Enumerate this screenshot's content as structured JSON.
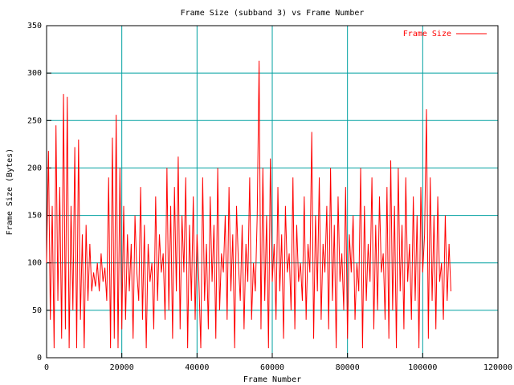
{
  "chart_data": {
    "type": "line",
    "title": "Frame Size (subband 3) vs Frame Number",
    "x_label": "Frame Number",
    "y_label": "Frame Size (Bytes)",
    "x": [
      0,
      500,
      1000,
      1500,
      2000,
      2500,
      3000,
      3500,
      4000,
      4500,
      5000,
      5500,
      6000,
      6500,
      7000,
      7500,
      8000,
      8500,
      9000,
      9500,
      10000,
      10500,
      11000,
      11500,
      12000,
      12500,
      13000,
      13500,
      14000,
      14500,
      15000,
      15500,
      16000,
      16500,
      17000,
      17500,
      18000,
      18500,
      19000,
      19500,
      20000,
      20500,
      21000,
      21500,
      22000,
      22500,
      23000,
      23500,
      24000,
      24500,
      25000,
      25500,
      26000,
      26500,
      27000,
      27500,
      28000,
      28500,
      29000,
      29500,
      30000,
      30500,
      31000,
      31500,
      32000,
      32500,
      33000,
      33500,
      34000,
      34500,
      35000,
      35500,
      36000,
      36500,
      37000,
      37500,
      38000,
      38500,
      39000,
      39500,
      40000,
      40500,
      41000,
      41500,
      42000,
      42500,
      43000,
      43500,
      44000,
      44500,
      45000,
      45500,
      46000,
      46500,
      47000,
      47500,
      48000,
      48500,
      49000,
      49500,
      50000,
      50500,
      51000,
      51500,
      52000,
      52500,
      53000,
      53500,
      54000,
      54500,
      55000,
      55500,
      56000,
      56500,
      57000,
      57500,
      58000,
      58500,
      59000,
      59500,
      60000,
      60500,
      61000,
      61500,
      62000,
      62500,
      63000,
      63500,
      64000,
      64500,
      65000,
      65500,
      66000,
      66500,
      67000,
      67500,
      68000,
      68500,
      69000,
      69500,
      70000,
      70500,
      71000,
      71500,
      72000,
      72500,
      73000,
      73500,
      74000,
      74500,
      75000,
      75500,
      76000,
      76500,
      77000,
      77500,
      78000,
      78500,
      79000,
      79500,
      80000,
      80500,
      81000,
      81500,
      82000,
      82500,
      83000,
      83500,
      84000,
      84500,
      85000,
      85500,
      86000,
      86500,
      87000,
      87500,
      88000,
      88500,
      89000,
      89500,
      90000,
      90500,
      91000,
      91500,
      92000,
      92500,
      93000,
      93500,
      94000,
      94500,
      95000,
      95500,
      96000,
      96500,
      97000,
      97500,
      98000,
      98500,
      99000,
      99500,
      100000,
      100500,
      101000,
      101500,
      102000,
      102500,
      103000,
      103500,
      104000,
      104500,
      105000,
      105500,
      106000,
      106500,
      107000,
      107500
    ],
    "series": [
      {
        "name": "Frame Size",
        "color": "#ff0000",
        "values": [
          100,
          218,
          40,
          160,
          10,
          245,
          60,
          180,
          20,
          278,
          30,
          275,
          10,
          160,
          50,
          222,
          10,
          230,
          40,
          130,
          10,
          140,
          60,
          120,
          70,
          90,
          75,
          100,
          70,
          110,
          80,
          95,
          60,
          190,
          10,
          232,
          20,
          256,
          10,
          200,
          30,
          160,
          40,
          130,
          70,
          120,
          20,
          150,
          90,
          60,
          180,
          40,
          140,
          10,
          120,
          80,
          100,
          30,
          170,
          60,
          130,
          90,
          110,
          40,
          200,
          50,
          160,
          20,
          180,
          70,
          212,
          30,
          150,
          90,
          190,
          10,
          140,
          60,
          170,
          40,
          130,
          80,
          10,
          190,
          60,
          120,
          30,
          170,
          80,
          140,
          20,
          200,
          50,
          110,
          90,
          150,
          40,
          180,
          70,
          130,
          10,
          160,
          100,
          60,
          140,
          30,
          120,
          80,
          190,
          40,
          100,
          70,
          150,
          313,
          30,
          200,
          60,
          150,
          10,
          210,
          80,
          120,
          40,
          180,
          70,
          130,
          20,
          160,
          90,
          110,
          50,
          190,
          30,
          140,
          80,
          100,
          60,
          170,
          40,
          120,
          90,
          238,
          20,
          150,
          70,
          190,
          40,
          120,
          90,
          160,
          30,
          200,
          60,
          140,
          10,
          170,
          80,
          110,
          50,
          180,
          20,
          130,
          90,
          150,
          40,
          100,
          70,
          200,
          10,
          160,
          60,
          120,
          80,
          190,
          30,
          140,
          50,
          170,
          90,
          110,
          40,
          180,
          20,
          208,
          50,
          160,
          10,
          200,
          70,
          140,
          30,
          190,
          80,
          120,
          40,
          170,
          60,
          150,
          10,
          180,
          90,
          130,
          262,
          20,
          190,
          60,
          150,
          30,
          170,
          80,
          100,
          40,
          150,
          60,
          120,
          70
        ]
      }
    ],
    "xlim": [
      0,
      120000
    ],
    "xticks": [
      0,
      20000,
      40000,
      60000,
      80000,
      100000,
      120000
    ],
    "ylim": [
      0,
      350
    ],
    "yticks": [
      0,
      50,
      100,
      150,
      200,
      250,
      300,
      350
    ],
    "grid": true,
    "grid_color": "#00a0a0",
    "legend": "top-right"
  }
}
